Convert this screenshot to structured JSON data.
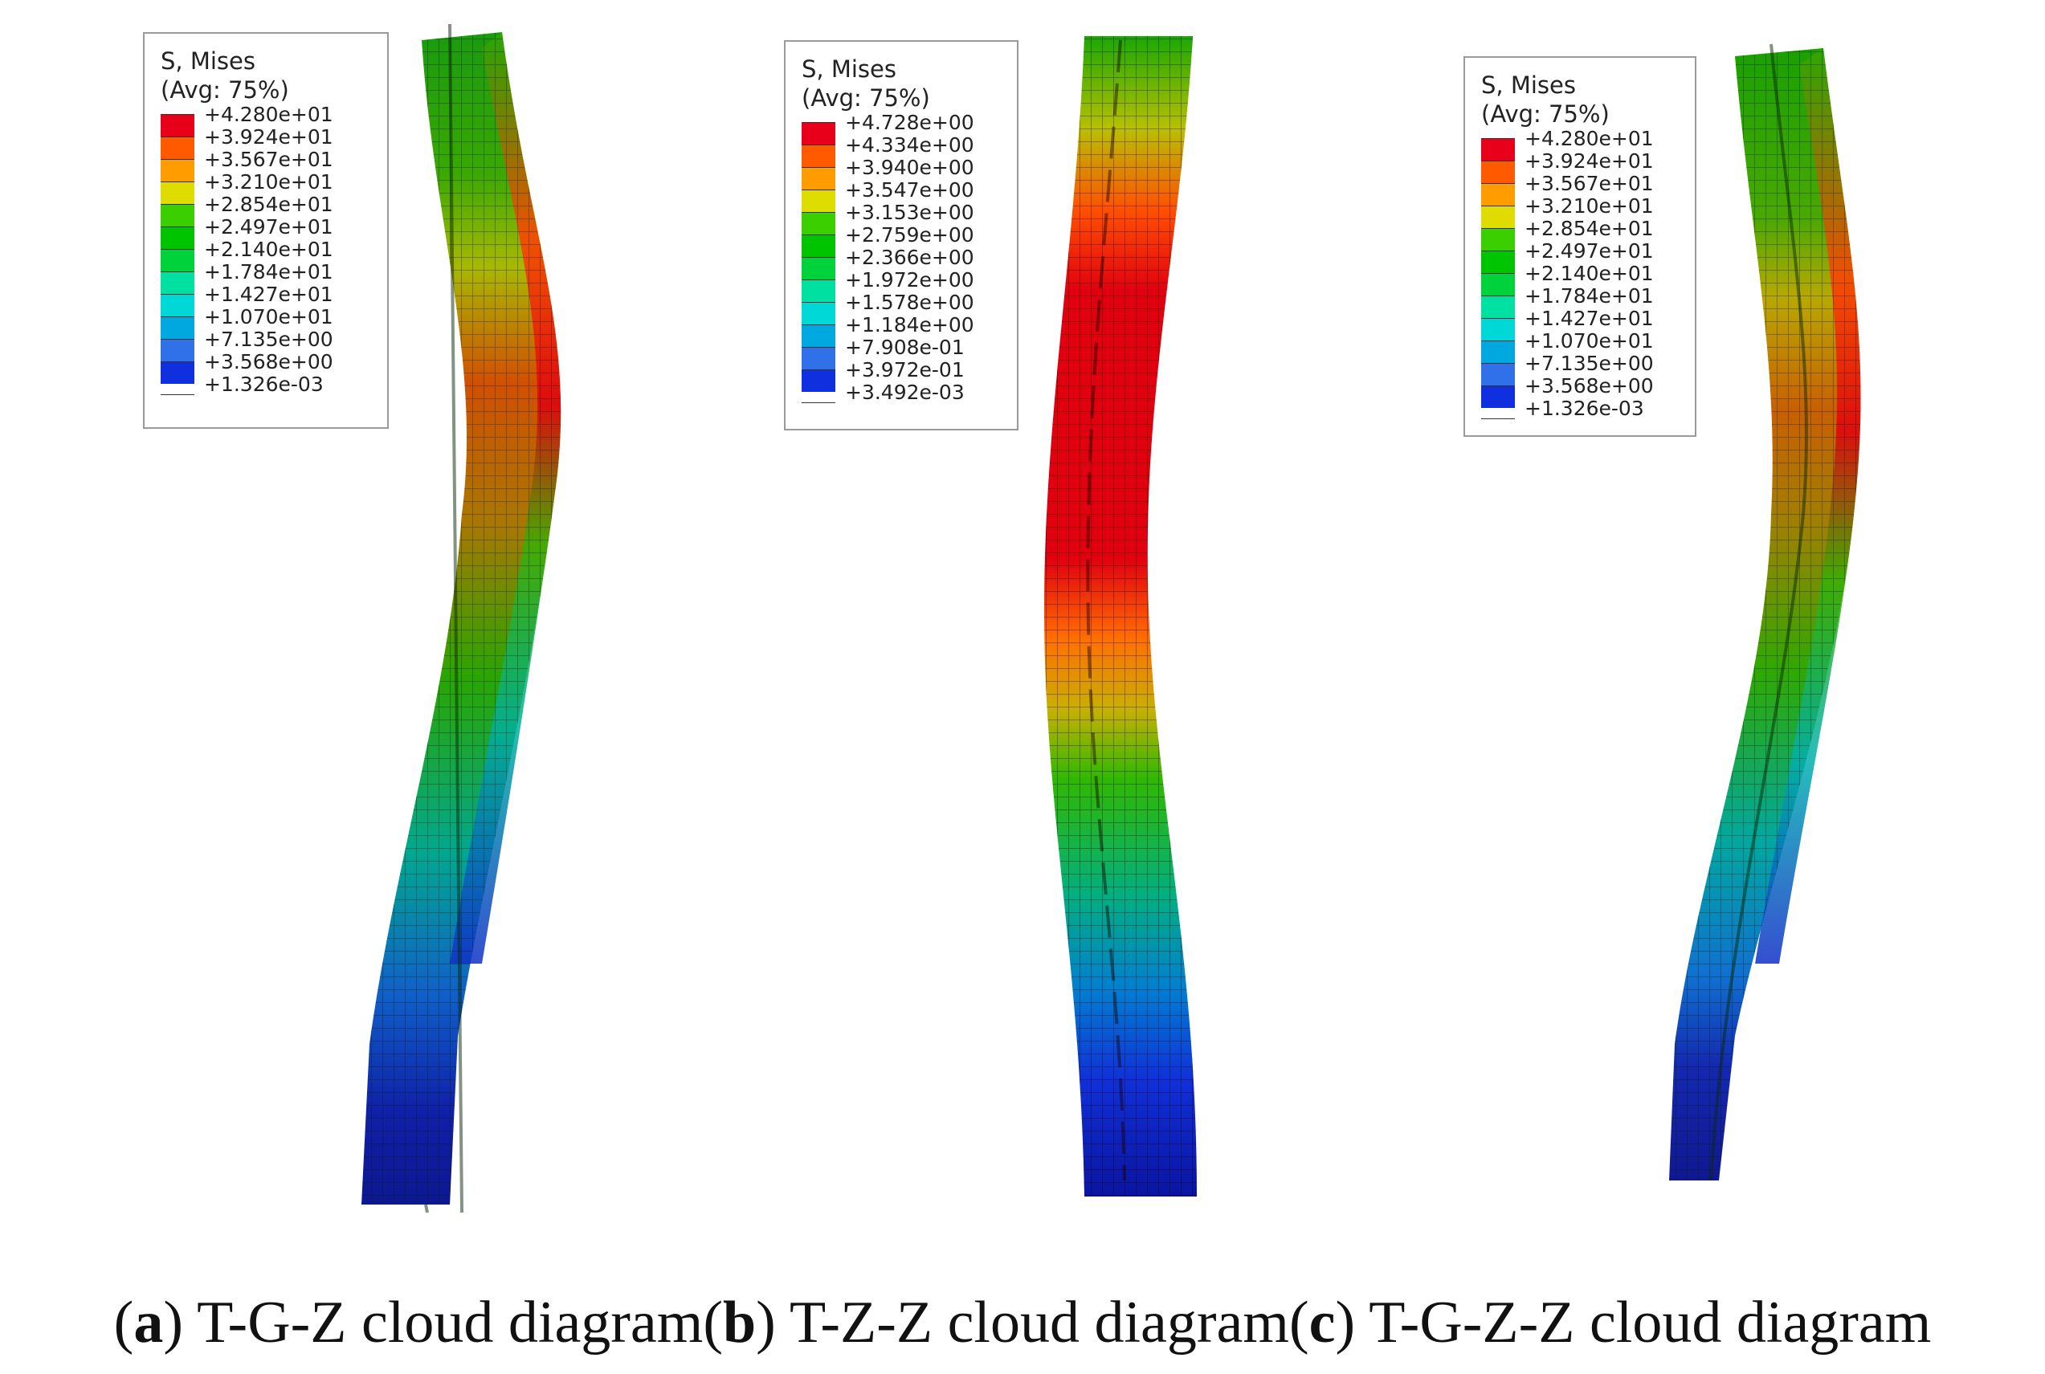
{
  "panels": [
    {
      "id": "a",
      "legend": {
        "title": "S, Mises",
        "subtitle": "(Avg: 75%)",
        "values": [
          "+4.280e+01",
          "+3.924e+01",
          "+3.567e+01",
          "+3.210e+01",
          "+2.854e+01",
          "+2.497e+01",
          "+2.140e+01",
          "+1.784e+01",
          "+1.427e+01",
          "+1.070e+01",
          "+7.135e+00",
          "+3.568e+00",
          "+1.326e-03"
        ]
      },
      "caption_letter": "a",
      "caption_text": " T-G-Z cloud diagram"
    },
    {
      "id": "b",
      "legend": {
        "title": "S, Mises",
        "subtitle": "(Avg: 75%)",
        "values": [
          "+4.728e+00",
          "+4.334e+00",
          "+3.940e+00",
          "+3.547e+00",
          "+3.153e+00",
          "+2.759e+00",
          "+2.366e+00",
          "+1.972e+00",
          "+1.578e+00",
          "+1.184e+00",
          "+7.908e-01",
          "+3.972e-01",
          "+3.492e-03"
        ]
      },
      "caption_letter": "b",
      "caption_text": " T-Z-Z cloud diagram"
    },
    {
      "id": "c",
      "legend": {
        "title": "S, Mises",
        "subtitle": "(Avg: 75%)",
        "values": [
          "+4.280e+01",
          "+3.924e+01",
          "+3.567e+01",
          "+3.210e+01",
          "+2.854e+01",
          "+2.497e+01",
          "+2.140e+01",
          "+1.784e+01",
          "+1.427e+01",
          "+1.070e+01",
          "+7.135e+00",
          "+3.568e+00",
          "+1.326e-03"
        ]
      },
      "caption_letter": "c",
      "caption_text": " T-G-Z-Z cloud diagram"
    }
  ],
  "colormap": [
    "#e8001a",
    "#ff5a00",
    "#ff9c00",
    "#dedc00",
    "#3ccf00",
    "#00c400",
    "#00d23c",
    "#00e0a0",
    "#00d8d8",
    "#00a8e0",
    "#3070e8",
    "#1030e0"
  ]
}
